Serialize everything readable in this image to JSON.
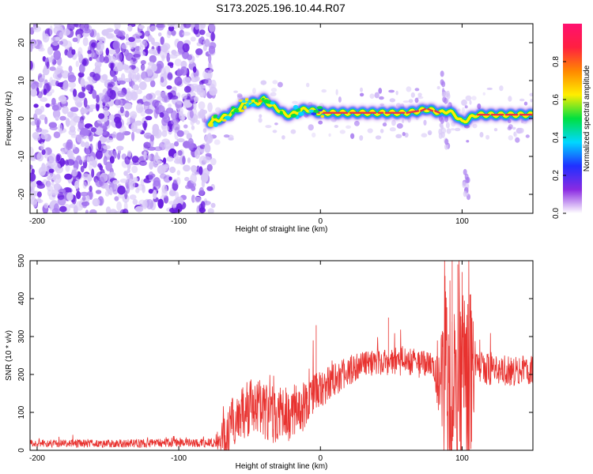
{
  "figure": {
    "title": "S173.2025.196.10.44.R07"
  },
  "colors": {
    "snr_line": "#e8322f",
    "ridge_core": "#e8324f",
    "noise_light": "#d9c9f7",
    "noise_mid": "#a77af0",
    "noise_dark": "#6a1fe0"
  },
  "chart_data": [
    {
      "type": "heatmap",
      "xlabel": "Height of straight line (km)",
      "ylabel": "Frequency (Hz)",
      "xlim": [
        -205,
        150
      ],
      "ylim": [
        -25,
        25
      ],
      "xticks": [
        -200,
        -100,
        0,
        100
      ],
      "yticks": [
        -20,
        -10,
        0,
        10,
        20
      ],
      "colorbar": {
        "label": "Normalized spectral amplitude",
        "range": [
          0,
          1
        ],
        "ticks": [
          "0.0",
          "0.2",
          "0.4",
          "0.6",
          "0.8"
        ],
        "colormap": [
          "#ffffff",
          "#8a2be2",
          "#2030ff",
          "#00d8ff",
          "#00e040",
          "#ffee00",
          "#ff8800",
          "#ff2040",
          "#ff1070"
        ]
      },
      "noise_region": {
        "x": [
          -205,
          -75
        ],
        "y": [
          -25,
          25
        ],
        "level": 0.2
      },
      "ridge": {
        "x": [
          -78,
          -70,
          -60,
          -55,
          -50,
          -45,
          -40,
          -35,
          -30,
          -25,
          -20,
          -15,
          -10,
          -5,
          0,
          20,
          40,
          45,
          60,
          70,
          75,
          80,
          85,
          90,
          95,
          100,
          105,
          110,
          120,
          130,
          140,
          150
        ],
        "freq": [
          -1,
          0,
          2,
          3.5,
          4.5,
          4,
          5,
          3.5,
          2.5,
          1,
          1,
          2,
          2.5,
          2,
          1.5,
          1.5,
          1.5,
          1.5,
          1.5,
          2,
          2.5,
          2,
          1.5,
          2,
          1,
          -1,
          0,
          1,
          1,
          1,
          1,
          1
        ],
        "amplitude": [
          0.3,
          0.4,
          0.5,
          0.5,
          0.55,
          0.6,
          0.5,
          0.55,
          0.5,
          0.7,
          0.8,
          0.75,
          0.7,
          0.75,
          0.85,
          0.9,
          0.9,
          0.7,
          0.9,
          0.85,
          0.8,
          0.9,
          0.7,
          0.5,
          0.6,
          0.5,
          0.7,
          0.85,
          0.9,
          0.9,
          0.85,
          0.8
        ]
      }
    },
    {
      "type": "line",
      "xlabel": "Height of straight line (km)",
      "ylabel": "SNR (10 * v/v)",
      "xlim": [
        -205,
        150
      ],
      "ylim": [
        0,
        500
      ],
      "xticks": [
        -200,
        -100,
        0,
        100
      ],
      "yticks": [
        0,
        100,
        200,
        300,
        400,
        500
      ],
      "baseline": {
        "x": [
          -205,
          -150,
          -100,
          -75,
          -65,
          -60,
          -50,
          -40,
          -30,
          -20,
          -10,
          0,
          10,
          20,
          30,
          40,
          50,
          60,
          70,
          80,
          85,
          90,
          95,
          100,
          105,
          110,
          120,
          130,
          140,
          150
        ],
        "y": [
          18,
          18,
          19,
          20,
          40,
          90,
          110,
          100,
          90,
          100,
          125,
          160,
          185,
          210,
          225,
          232,
          235,
          232,
          230,
          225,
          215,
          200,
          200,
          200,
          200,
          215,
          215,
          212,
          210,
          210
        ]
      },
      "noise_amplitude": {
        "x": [
          -205,
          -75,
          -65,
          -40,
          -10,
          0,
          30,
          80,
          88,
          105,
          110,
          150
        ],
        "y": [
          10,
          12,
          70,
          80,
          70,
          50,
          35,
          40,
          260,
          260,
          45,
          40
        ]
      },
      "spikes": [
        {
          "x": -3,
          "y": 330
        },
        {
          "x": 48,
          "y": 350
        },
        {
          "x": 93,
          "y": 500
        },
        {
          "x": 97,
          "y": 490
        },
        {
          "x": 100,
          "y": 470
        },
        {
          "x": 88,
          "y": 460
        }
      ]
    }
  ]
}
